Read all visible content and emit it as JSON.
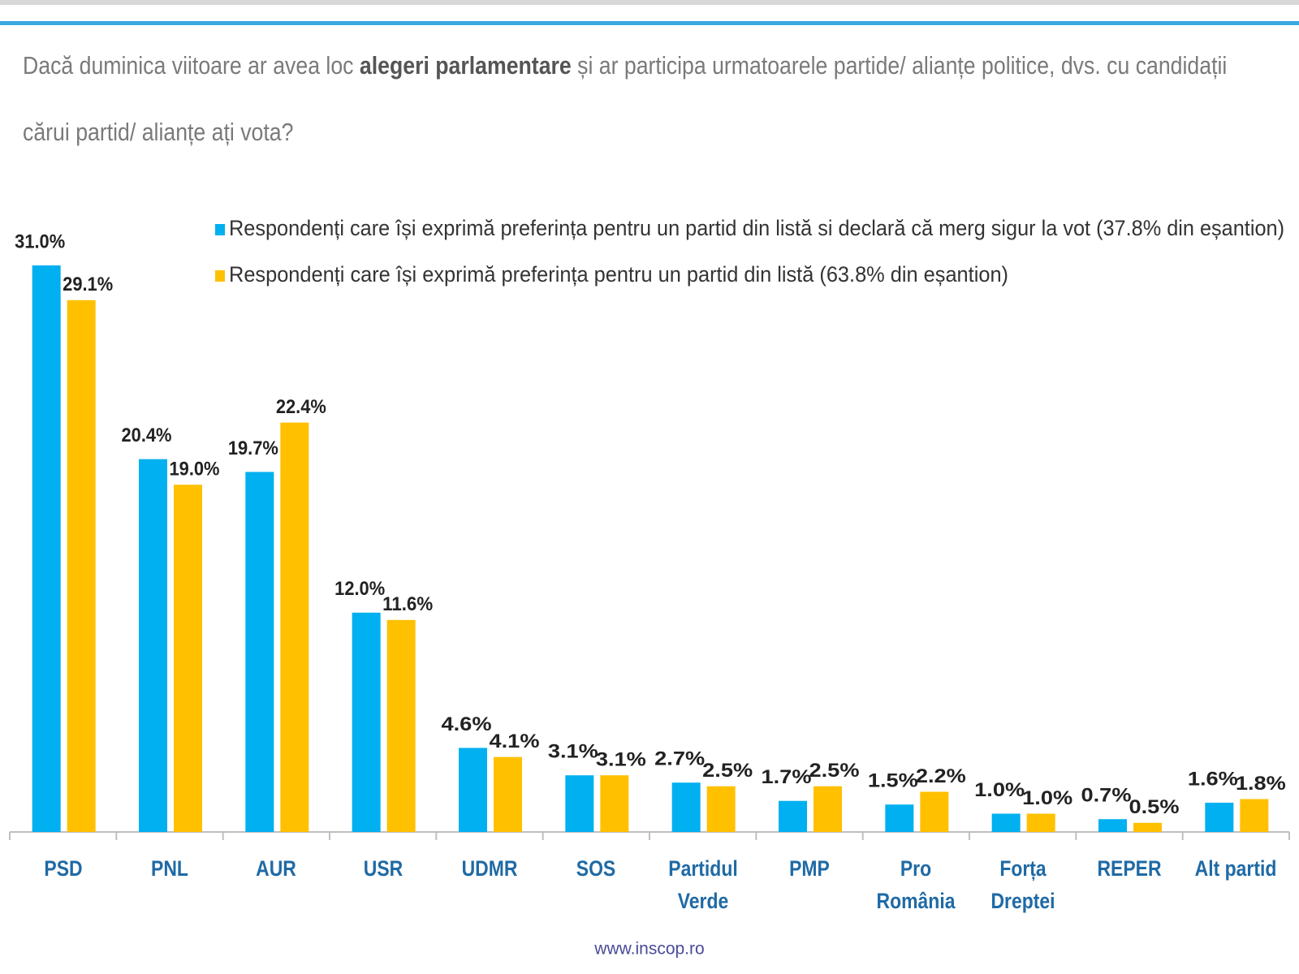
{
  "chart_data": {
    "type": "bar",
    "title_parts": [
      "Dacă duminica viitoare ar avea loc ",
      "alegeri parlamentare",
      " și ar participa urmatoarele partide/ alianțe politice, dvs. cu candidații cărui partid/ alianțe ați vota?"
    ],
    "categories": [
      "PSD",
      "PNL",
      "AUR",
      "USR",
      "UDMR",
      "SOS",
      "Partidul Verde",
      "PMP",
      "Pro România",
      "Forța Dreptei",
      "REPER",
      "Alt partid"
    ],
    "series": [
      {
        "name": "Respondenți care își exprimă preferința pentru un partid din listă si declară că merg sigur la vot (37.8% din eșantion)",
        "color": "#00b0f0",
        "values": [
          31.0,
          20.4,
          19.7,
          12.0,
          4.6,
          3.1,
          2.7,
          1.7,
          1.5,
          1.0,
          0.7,
          1.6
        ],
        "value_labels": [
          "31.0%",
          "20.4%",
          "19.7%",
          "12.0%",
          "4.6%",
          "3.1%",
          "2.7%",
          "1.7%",
          "1.5%",
          "1.0%",
          "0.7%",
          "1.6%"
        ]
      },
      {
        "name": "Respondenți care își exprimă preferința pentru un partid din listă (63.8% din eșantion)",
        "color": "#ffc000",
        "values": [
          29.1,
          19.0,
          22.4,
          11.6,
          4.1,
          3.1,
          2.5,
          2.5,
          2.2,
          1.0,
          0.5,
          1.8
        ],
        "value_labels": [
          "29.1%",
          "19.0%",
          "22.4%",
          "11.6%",
          "4.1%",
          "3.1%",
          "2.5%",
          "2.5%",
          "2.2%",
          "1.0%",
          "0.5%",
          "1.8%"
        ]
      }
    ],
    "source": "www.inscop.ro"
  }
}
